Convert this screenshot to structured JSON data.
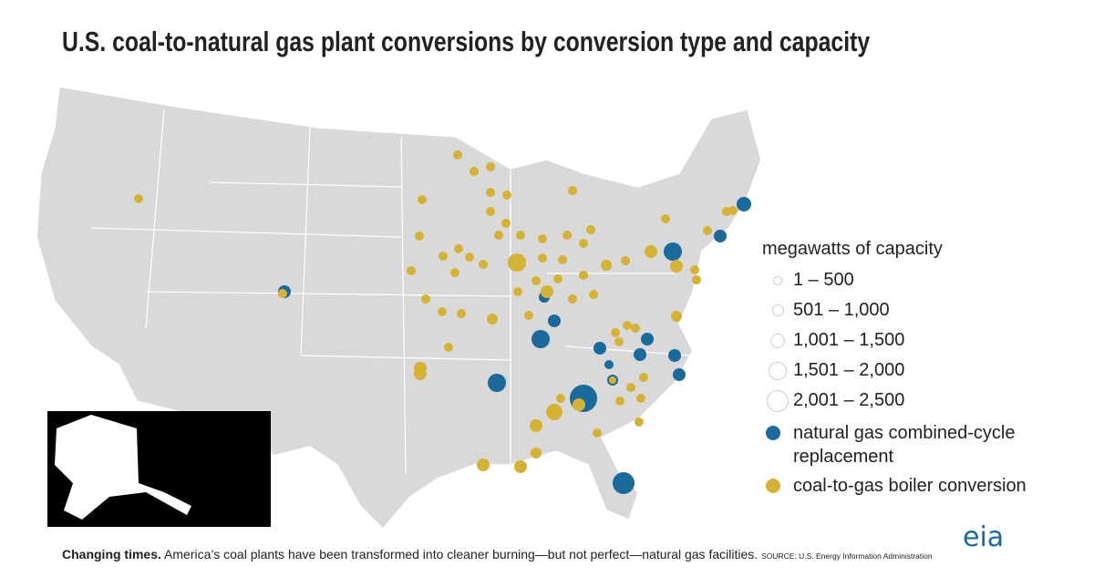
{
  "header": {
    "title": "U.S. coal-to-natural gas plant conversions by conversion type and capacity"
  },
  "legend": {
    "title": "megawatts of capacity",
    "size_classes": [
      "1 – 500",
      "501 – 1,000",
      "1,001 – 1,500",
      "1,501 – 2,000",
      "2,001 – 2,500"
    ],
    "types": [
      {
        "label": "natural gas combined-cycle replacement",
        "color": "#1b6a9c"
      },
      {
        "label": "coal-to-gas boiler conversion",
        "color": "#d6b234"
      }
    ]
  },
  "caption": {
    "lead": "Changing times.",
    "text": "America’s coal plants have been transformed into cleaner burning—but not perfect—natural gas facilities.",
    "source": "SOURCE: U.S. Energy Information Administration"
  },
  "logo": "eia"
}
